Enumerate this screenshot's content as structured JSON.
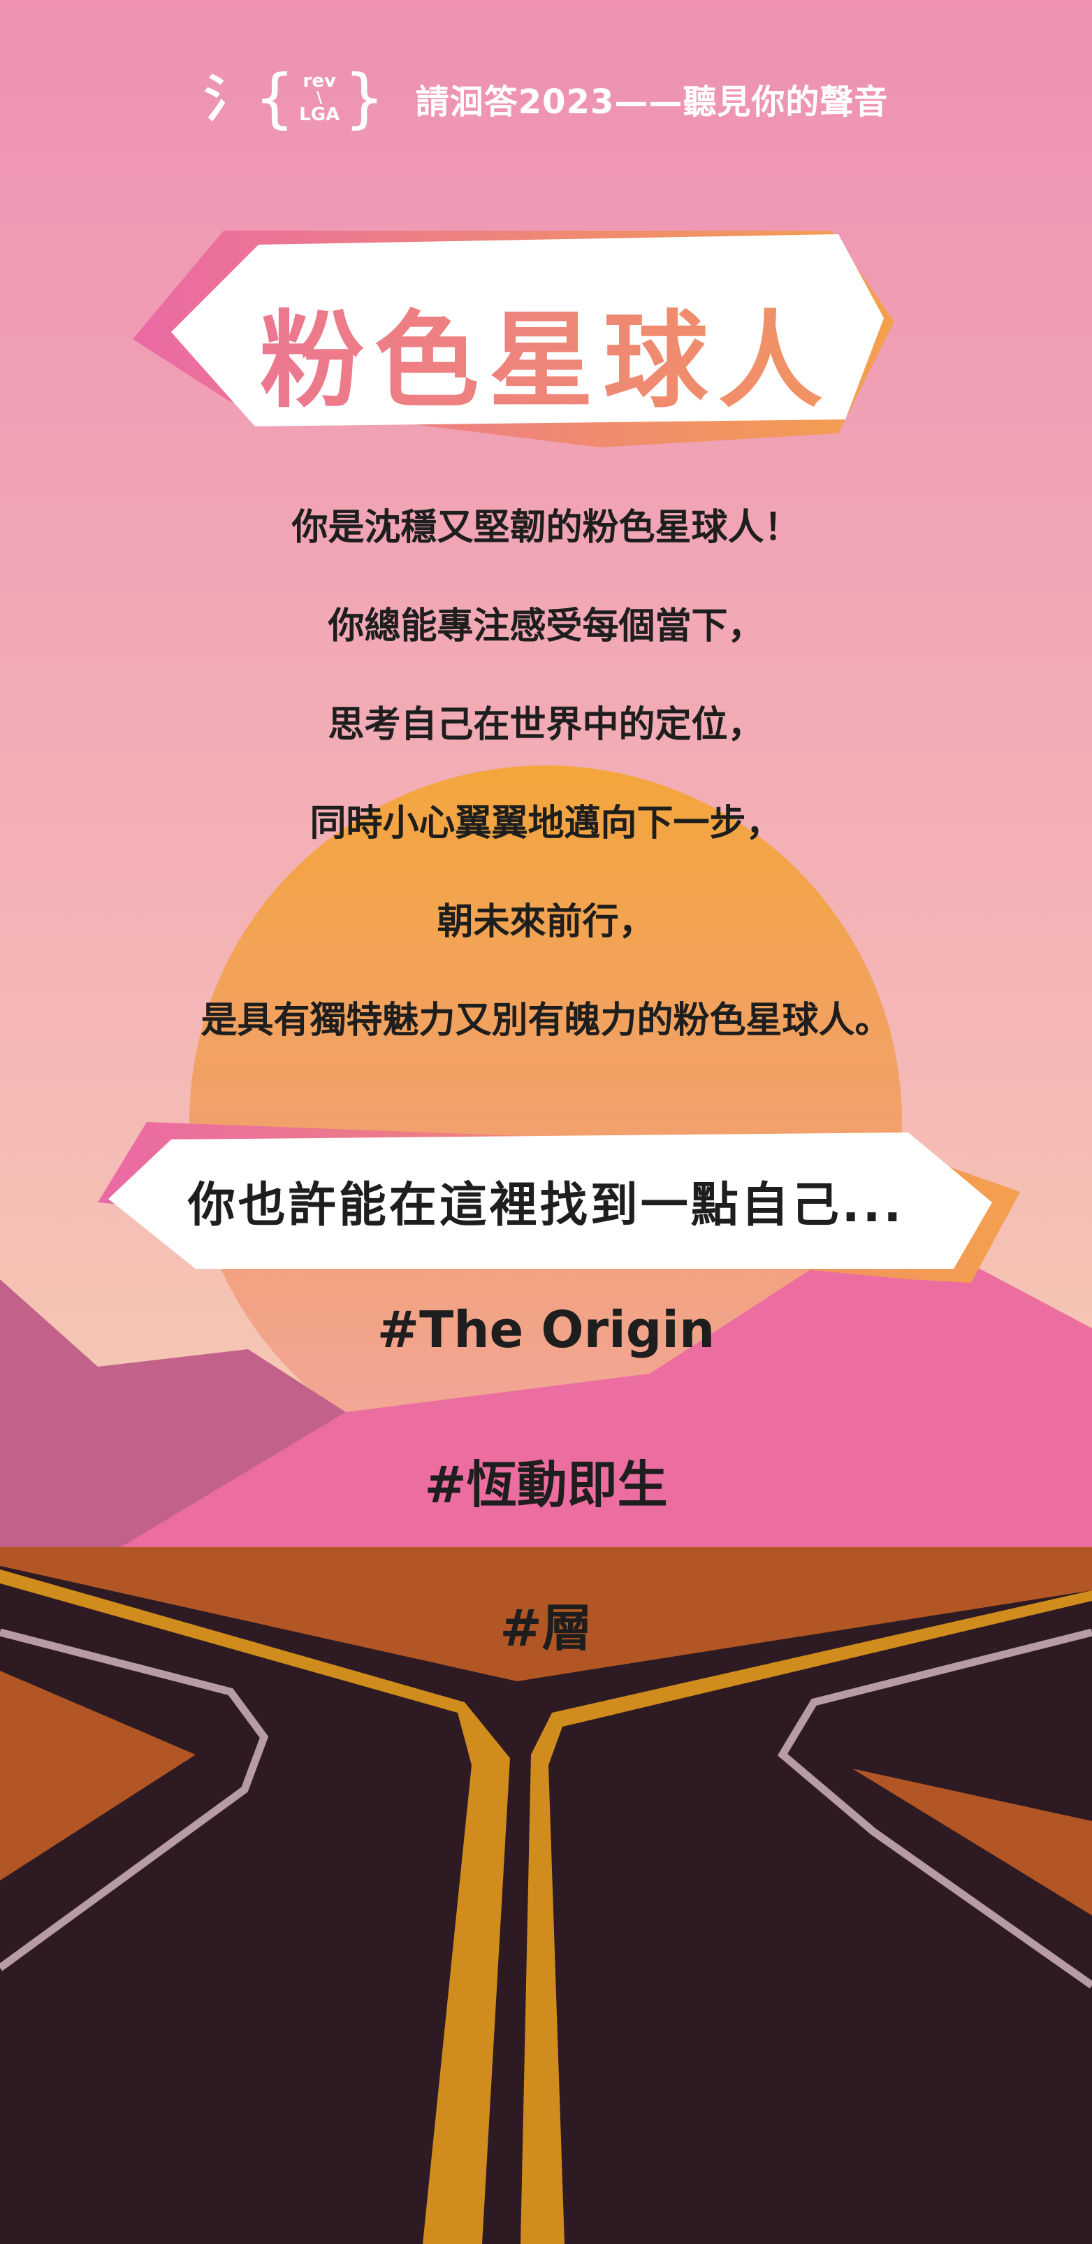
{
  "header": {
    "logo": {
      "glyph": "氵",
      "top": "rev",
      "slash": "\\",
      "bottom": "LGA"
    },
    "title": "請洄答2023——聽見你的聲音"
  },
  "result": {
    "title": "粉色星球人",
    "lines": [
      "你是沈穩又堅韌的粉色星球人！",
      "你總能專注感受每個當下，",
      "思考自己在世界中的定位，",
      "同時小心翼翼地邁向下一步，",
      "朝未來前行，",
      "是具有獨特魅力又別有魄力的粉色星球人。"
    ],
    "banner": "你也許能在這裡找到一點自己...",
    "tags": [
      "#The Origin",
      "#恆動即生",
      "#層"
    ]
  },
  "colors": {
    "sky_top": "#ee91b3",
    "sky_bottom": "#f6ceb3",
    "sun": "#f3a94a",
    "mountain_left": "#c2628a",
    "mountain_pink": "#ec6d9f",
    "ground": "#b15624",
    "road": "#2e1a22",
    "road_line": "#d08d1e",
    "road_edge": "#b79ca8",
    "title_gradient_start": "#ea6aa5",
    "title_gradient_end": "#f3a04d"
  }
}
